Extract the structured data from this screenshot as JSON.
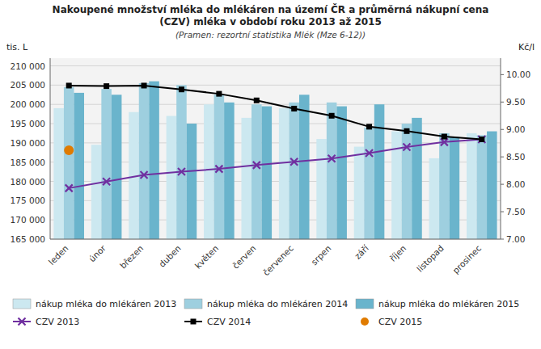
{
  "chart_data": {
    "type": "bar",
    "title": "Nakoupené množství mléka do mlékáren na území ČR a průměrná nákupní cena\n(CZV) mléka v období roku 2013 až 2015",
    "subtitle": "(Pramen: rezortní statistika Mlék (Mze 6-12))",
    "categories": [
      "leden",
      "únor",
      "březen",
      "duben",
      "květen",
      "červen",
      "červenec",
      "srpen",
      "září",
      "říjen",
      "listopad",
      "prosinec"
    ],
    "y_label": "tis. L",
    "y2_label": "Kč/l",
    "ylim": [
      165000,
      212000
    ],
    "yticks": [
      {
        "value": 165000,
        "label": "165 000"
      },
      {
        "value": 170000,
        "label": "170 000"
      },
      {
        "value": 175000,
        "label": "175 000"
      },
      {
        "value": 180000,
        "label": "180 000"
      },
      {
        "value": 185000,
        "label": "185 000"
      },
      {
        "value": 190000,
        "label": "190 000"
      },
      {
        "value": 195000,
        "label": "195 000"
      },
      {
        "value": 200000,
        "label": "200 000"
      },
      {
        "value": 205000,
        "label": "205 000"
      },
      {
        "value": 210000,
        "label": "210 000"
      }
    ],
    "y2lim": [
      7.0,
      10.3
    ],
    "y2ticks": [
      {
        "value": 7.0,
        "label": "7.00"
      },
      {
        "value": 7.5,
        "label": "7.50"
      },
      {
        "value": 8.0,
        "label": "8.00"
      },
      {
        "value": 8.5,
        "label": "8.50"
      },
      {
        "value": 9.0,
        "label": "9.00"
      },
      {
        "value": 9.5,
        "label": "9.50"
      },
      {
        "value": 10.0,
        "label": "10.00"
      }
    ],
    "grid": true,
    "series": [
      {
        "name": "nákup mléka do mlékáren 2013",
        "type": "bar",
        "color": "#cce8f0",
        "values": [
          199000,
          189500,
          198000,
          197000,
          200000,
          196500,
          199000,
          191000,
          189000,
          193000,
          186000,
          192500
        ]
      },
      {
        "name": "nákup mléka do mlékáren 2014",
        "type": "bar",
        "color": "#9ecfdf",
        "values": [
          204500,
          204000,
          205500,
          205000,
          202500,
          200000,
          200500,
          200500,
          194000,
          195000,
          192500,
          192000
        ]
      },
      {
        "name": "nákup mléka do mlékáren 2015",
        "type": "bar",
        "color": "#6ab4cc",
        "values": [
          203000,
          202500,
          206000,
          195000,
          200500,
          199500,
          202500,
          199500,
          200000,
          196500,
          191500,
          193000
        ]
      },
      {
        "name": "CZV 2013",
        "type": "line",
        "axis": "y2",
        "color": "#7030a0",
        "marker": "x",
        "line_style": "solid",
        "values": [
          7.93,
          8.05,
          8.17,
          8.23,
          8.28,
          8.35,
          8.41,
          8.47,
          8.57,
          8.68,
          8.77,
          8.82
        ]
      },
      {
        "name": "CZV 2014",
        "type": "line",
        "axis": "y2",
        "color": "#000000",
        "marker": "square",
        "line_style": "solid",
        "values": [
          9.8,
          9.79,
          9.8,
          9.73,
          9.65,
          9.53,
          9.38,
          9.25,
          9.05,
          8.97,
          8.87,
          8.82
        ]
      },
      {
        "name": "CZV 2015",
        "type": "line",
        "axis": "y2",
        "color": "#e07b00",
        "marker": "circle",
        "line_style": "none",
        "values": [
          8.62,
          null,
          null,
          null,
          null,
          null,
          null,
          null,
          null,
          null,
          null,
          null
        ]
      }
    ]
  }
}
